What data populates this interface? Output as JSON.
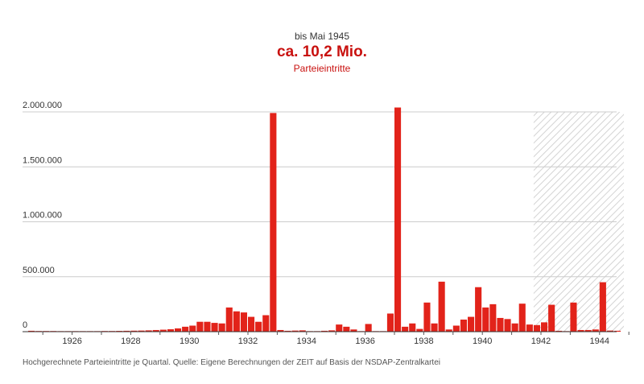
{
  "header": {
    "subtitle": "bis Mai 1945",
    "total": "ca. 10,2 Mio.",
    "unit": "Parteieintritte"
  },
  "caption": "Hochgerechnete Parteieintritte je Quartal. Quelle: Eigene Berechnungen der ZEIT auf Basis der NSDAP-Zentralkartei",
  "colors": {
    "bar": "#e2231a",
    "grid": "#cccccc",
    "hatch": "#cfcfcf"
  },
  "chart_data": {
    "type": "bar",
    "title": "ca. 10,2 Mio.",
    "subtitle": "bis Mai 1945",
    "ylabel": "Parteieintritte",
    "ylim": [
      0,
      2000000
    ],
    "y_ticks": [
      0,
      500000,
      1000000,
      1500000,
      2000000
    ],
    "y_tick_labels": [
      "0",
      "500.000",
      "1.000.000",
      "1.500.000",
      "2.000.000"
    ],
    "x_ticks": [
      1926,
      1928,
      1930,
      1932,
      1934,
      1936,
      1938,
      1940,
      1942,
      1944
    ],
    "x_start": 1925,
    "grid": true,
    "shaded_range": [
      1942.25,
      1945.33
    ],
    "quarters": [
      {
        "x": 1925.0,
        "v": 8000
      },
      {
        "x": 1925.25,
        "v": 6000
      },
      {
        "x": 1925.5,
        "v": 6000
      },
      {
        "x": 1925.75,
        "v": 6000
      },
      {
        "x": 1926.0,
        "v": 5000
      },
      {
        "x": 1926.25,
        "v": 5000
      },
      {
        "x": 1926.5,
        "v": 5000
      },
      {
        "x": 1926.75,
        "v": 5000
      },
      {
        "x": 1927.0,
        "v": 5000
      },
      {
        "x": 1927.25,
        "v": 5000
      },
      {
        "x": 1927.5,
        "v": 6000
      },
      {
        "x": 1927.75,
        "v": 6000
      },
      {
        "x": 1928.0,
        "v": 7000
      },
      {
        "x": 1928.25,
        "v": 8000
      },
      {
        "x": 1928.5,
        "v": 9000
      },
      {
        "x": 1928.75,
        "v": 10000
      },
      {
        "x": 1929.0,
        "v": 12000
      },
      {
        "x": 1929.25,
        "v": 15000
      },
      {
        "x": 1929.5,
        "v": 18000
      },
      {
        "x": 1929.75,
        "v": 22000
      },
      {
        "x": 1930.0,
        "v": 30000
      },
      {
        "x": 1930.25,
        "v": 45000
      },
      {
        "x": 1930.5,
        "v": 55000
      },
      {
        "x": 1930.75,
        "v": 90000
      },
      {
        "x": 1931.0,
        "v": 90000
      },
      {
        "x": 1931.25,
        "v": 80000
      },
      {
        "x": 1931.5,
        "v": 75000
      },
      {
        "x": 1931.75,
        "v": 220000
      },
      {
        "x": 1932.0,
        "v": 185000
      },
      {
        "x": 1932.25,
        "v": 175000
      },
      {
        "x": 1932.5,
        "v": 135000
      },
      {
        "x": 1932.75,
        "v": 90000
      },
      {
        "x": 1933.0,
        "v": 150000
      },
      {
        "x": 1933.25,
        "v": 1990000
      },
      {
        "x": 1933.5,
        "v": 15000
      },
      {
        "x": 1933.75,
        "v": 8000
      },
      {
        "x": 1934.0,
        "v": 10000
      },
      {
        "x": 1934.25,
        "v": 12000
      },
      {
        "x": 1934.5,
        "v": 5000
      },
      {
        "x": 1934.75,
        "v": 5000
      },
      {
        "x": 1935.0,
        "v": 8000
      },
      {
        "x": 1935.25,
        "v": 12000
      },
      {
        "x": 1935.5,
        "v": 65000
      },
      {
        "x": 1935.75,
        "v": 45000
      },
      {
        "x": 1936.0,
        "v": 20000
      },
      {
        "x": 1936.25,
        "v": 5000
      },
      {
        "x": 1936.5,
        "v": 70000
      },
      {
        "x": 1936.75,
        "v": 5000
      },
      {
        "x": 1937.0,
        "v": 5000
      },
      {
        "x": 1937.25,
        "v": 165000
      },
      {
        "x": 1937.5,
        "v": 2040000
      },
      {
        "x": 1937.75,
        "v": 45000
      },
      {
        "x": 1938.0,
        "v": 75000
      },
      {
        "x": 1938.25,
        "v": 25000
      },
      {
        "x": 1938.5,
        "v": 265000
      },
      {
        "x": 1938.75,
        "v": 75000
      },
      {
        "x": 1939.0,
        "v": 455000
      },
      {
        "x": 1939.25,
        "v": 20000
      },
      {
        "x": 1939.5,
        "v": 55000
      },
      {
        "x": 1939.75,
        "v": 110000
      },
      {
        "x": 1940.0,
        "v": 135000
      },
      {
        "x": 1940.25,
        "v": 405000
      },
      {
        "x": 1940.5,
        "v": 220000
      },
      {
        "x": 1940.75,
        "v": 250000
      },
      {
        "x": 1941.0,
        "v": 125000
      },
      {
        "x": 1941.25,
        "v": 115000
      },
      {
        "x": 1941.5,
        "v": 75000
      },
      {
        "x": 1941.75,
        "v": 255000
      },
      {
        "x": 1942.0,
        "v": 65000
      },
      {
        "x": 1942.25,
        "v": 60000
      },
      {
        "x": 1942.5,
        "v": 85000
      },
      {
        "x": 1942.75,
        "v": 245000
      },
      {
        "x": 1943.0,
        "v": 8000
      },
      {
        "x": 1943.25,
        "v": 5000
      },
      {
        "x": 1943.5,
        "v": 265000
      },
      {
        "x": 1943.75,
        "v": 15000
      },
      {
        "x": 1944.0,
        "v": 15000
      },
      {
        "x": 1944.25,
        "v": 20000
      },
      {
        "x": 1944.5,
        "v": 450000
      },
      {
        "x": 1944.75,
        "v": 10000
      },
      {
        "x": 1945.0,
        "v": 8000
      }
    ]
  }
}
